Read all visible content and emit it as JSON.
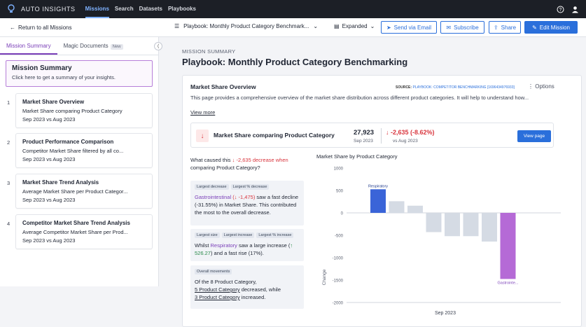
{
  "app": {
    "brand": "AUTO INSIGHTS",
    "nav": [
      "Missions",
      "Search",
      "Datasets",
      "Playbooks"
    ]
  },
  "subbar": {
    "back": "Return to all Missions",
    "playbook": "Playbook: Monthly Product Category Benchmark...",
    "view": "Expanded",
    "send_email": "Send via Email",
    "subscribe": "Subscribe",
    "share": "Share",
    "edit": "Edit Mission"
  },
  "sidebar": {
    "tabs": [
      "Mission Summary",
      "Magic Documents"
    ],
    "new_badge": "New",
    "summary_title": "Mission Summary",
    "summary_sub": "Click here to get a summary of your insights.",
    "items": [
      {
        "num": "1",
        "title": "Market Share Overview",
        "desc": "Market Share comparing Product Category",
        "date": "Sep 2023 vs Aug 2023"
      },
      {
        "num": "2",
        "title": "Product Performance Comparison",
        "desc": "Competitor Market Share filtered by all co...",
        "date": "Sep 2023 vs Aug 2023"
      },
      {
        "num": "3",
        "title": "Market Share Trend Analysis",
        "desc": "Average Market Share per Product Categor...",
        "date": "Sep 2023 vs Aug 2023"
      },
      {
        "num": "4",
        "title": "Competitor Market Share Trend Analysis",
        "desc": "Average Competitor Market Share per Prod...",
        "date": "Sep 2023 vs Aug 2023"
      }
    ]
  },
  "main": {
    "kicker": "MISSION SUMMARY",
    "title": "Playbook: Monthly Product Category Benchmarking",
    "card": {
      "title": "Market Share Overview",
      "source_label": "SOURCE:",
      "source_value": "PLAYBOOK: COMPETITOR BENCHMARKING [1696434976933]",
      "options": "Options",
      "description": "This page provides a comprehensive overview of the market share distribution across different product categories. It will help to understand how...",
      "view_more": "View more",
      "metric": {
        "name": "Market Share comparing Product Category",
        "value": "27,923",
        "date": "Sep 2023",
        "change": "-2,635 (-8.62%)",
        "vs": "vs Aug 2023",
        "view_page": "View page"
      },
      "question_a": "What caused this",
      "question_red": "-2,635 decrease when",
      "question_b": "comparing Product Category?",
      "insights": [
        {
          "tags": [
            "Largest decrease",
            "Largest % decrease"
          ],
          "hl": "Gastrointestinal",
          "delta": "-1,475",
          "text": "saw a fast decline (-31.55%) in Market Share. This contributed the most to the overall decrease."
        },
        {
          "tags": [
            "Largest size",
            "Largest increase",
            "Largest % increase"
          ],
          "pre": "Whilst",
          "hl": "Respiratory",
          "mid": "saw a large increase (",
          "delta": "526.27",
          "post": ") and a fast rise (17%)."
        },
        {
          "tags": [
            "Overall movements"
          ],
          "line1": "Of the 8 Product Category,",
          "link1": "5 Product Category",
          "mid": "decreased, while",
          "link2": "3 Product Category",
          "post": "increased."
        }
      ]
    }
  },
  "chart_data": {
    "type": "bar",
    "title": "Market Share by Product Category",
    "ylabel": "Change",
    "xlabel": "Sep 2023",
    "ylim": [
      -2000,
      1000
    ],
    "yticks": [
      1000,
      500,
      0,
      -500,
      -1000,
      -1500,
      -2000
    ],
    "values": [
      526.27,
      260,
      160,
      -430,
      -520,
      -520,
      -640,
      -1475
    ],
    "labels": [
      "Respiratory",
      "",
      "",
      "",
      "",
      "",
      "",
      "Gastrointe..."
    ],
    "colors": [
      "#3a64d8",
      "#d5dbe4",
      "#d5dbe4",
      "#d5dbe4",
      "#d5dbe4",
      "#d5dbe4",
      "#d5dbe4",
      "#b56ad6"
    ]
  }
}
